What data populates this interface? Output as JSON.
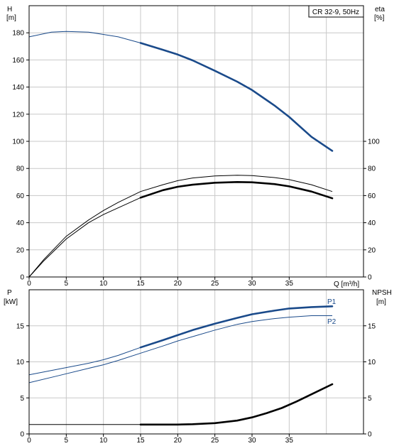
{
  "chart_data": [
    {
      "type": "line",
      "panel": "head-efficiency",
      "title": "CR 32-9, 50Hz",
      "left_axis": {
        "label_line1": "H",
        "label_line2": "[m]",
        "range": [
          0,
          200
        ],
        "ticks": [
          0,
          20,
          40,
          60,
          80,
          100,
          120,
          140,
          160,
          180
        ]
      },
      "right_axis": {
        "label_line1": "eta",
        "label_line2": "[%]",
        "range": [
          0,
          200
        ],
        "ticks": [
          0,
          20,
          40,
          60,
          80,
          100
        ]
      },
      "x_axis": {
        "label": "Q [m³/h]",
        "range": [
          0,
          45
        ],
        "ticks": [
          0,
          5,
          10,
          15,
          20,
          25,
          30,
          35
        ]
      },
      "grid": true,
      "series": [
        {
          "id": "head",
          "color": "#1a4a8a",
          "axis": "left",
          "x": [
            0,
            3,
            5,
            8,
            10,
            12,
            15,
            18,
            20,
            22,
            25,
            28,
            30,
            33,
            35,
            38,
            40.8
          ],
          "y": [
            177,
            180.5,
            181,
            180.5,
            178.8,
            177,
            172.5,
            167.5,
            164,
            159.7,
            152,
            144,
            137.8,
            126.5,
            118,
            103.3,
            93
          ],
          "emphasis_from": 15
        },
        {
          "id": "eta-upper",
          "color": "#000000",
          "axis": "right",
          "x": [
            0,
            2,
            5,
            8,
            10,
            12,
            15,
            18,
            20,
            22,
            25,
            28,
            30,
            33,
            35,
            38,
            40.8
          ],
          "y": [
            0,
            13,
            30,
            42,
            49,
            55,
            63,
            68,
            71,
            73,
            74.5,
            75,
            74.7,
            73.3,
            71.8,
            68,
            63
          ],
          "emphasis_from": 40.8
        },
        {
          "id": "eta-lower",
          "color": "#000000",
          "axis": "right",
          "x": [
            0,
            2,
            5,
            8,
            10,
            12,
            15,
            18,
            20,
            22,
            25,
            28,
            30,
            33,
            35,
            38,
            40.8
          ],
          "y": [
            0,
            12,
            28,
            40,
            46,
            51,
            58.5,
            64,
            66.5,
            68,
            69.5,
            70,
            69.8,
            68.5,
            66.8,
            63,
            58
          ],
          "emphasis_from": 15
        }
      ]
    },
    {
      "type": "line",
      "panel": "power-npsh",
      "left_axis": {
        "label_line1": "P",
        "label_line2": "[kW]",
        "range": [
          0,
          20
        ],
        "ticks": [
          0,
          5,
          10,
          15
        ]
      },
      "right_axis": {
        "label_line1": "NPSH",
        "label_line2": "[m]",
        "range": [
          0,
          20
        ],
        "ticks": [
          0,
          5,
          10,
          15
        ]
      },
      "x_axis": {
        "range": [
          0,
          45
        ],
        "ticks": [
          0,
          5,
          10,
          15,
          20,
          25,
          30,
          35
        ]
      },
      "grid": true,
      "series": [
        {
          "id": "p1",
          "name": "P1",
          "color": "#1a4a8a",
          "axis": "left",
          "x": [
            0,
            4,
            8,
            10,
            12,
            15,
            18,
            20,
            22,
            25,
            28,
            30,
            33,
            35,
            38,
            40.8
          ],
          "y": [
            8.2,
            9,
            9.8,
            10.3,
            10.9,
            12,
            13,
            13.7,
            14.4,
            15.3,
            16.1,
            16.6,
            17.1,
            17.4,
            17.6,
            17.7
          ],
          "emphasis_from": 15
        },
        {
          "id": "p2",
          "name": "P2",
          "color": "#1a4a8a",
          "axis": "left",
          "x": [
            0,
            4,
            8,
            10,
            12,
            15,
            18,
            20,
            22,
            25,
            28,
            30,
            33,
            35,
            38,
            40.8
          ],
          "y": [
            7.1,
            8.1,
            9.1,
            9.6,
            10.2,
            11.2,
            12.2,
            12.9,
            13.5,
            14.4,
            15.2,
            15.6,
            16,
            16.2,
            16.4,
            16.4
          ],
          "emphasis_from": 40.8
        },
        {
          "id": "npsh",
          "color": "#000000",
          "axis": "right",
          "x": [
            0,
            5,
            10,
            15,
            18,
            20,
            22,
            25,
            28,
            30,
            32,
            34,
            36,
            38,
            40.8
          ],
          "y": [
            1.3,
            1.3,
            1.3,
            1.3,
            1.3,
            1.3,
            1.35,
            1.5,
            1.85,
            2.3,
            2.9,
            3.6,
            4.5,
            5.5,
            6.9
          ],
          "emphasis_from": 15
        }
      ]
    }
  ]
}
